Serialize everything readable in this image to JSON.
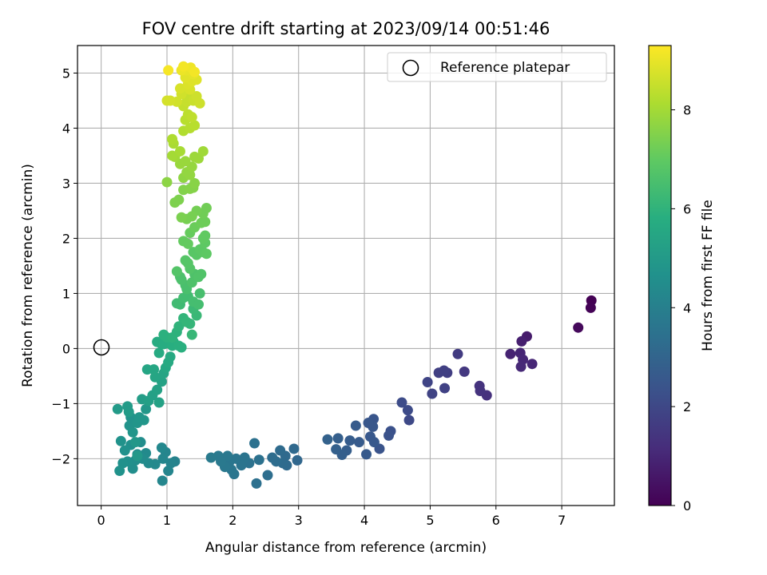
{
  "chart_data": {
    "type": "scatter",
    "title": "FOV centre drift starting at 2023/09/14 00:51:46",
    "xlabel": "Angular distance from reference (arcmin)",
    "ylabel": "Rotation from reference (arcmin)",
    "xlim": [
      -0.36,
      7.8
    ],
    "ylim": [
      -2.85,
      5.5
    ],
    "xticks": [
      0,
      1,
      2,
      3,
      4,
      5,
      6,
      7
    ],
    "yticks": [
      -2,
      -1,
      0,
      1,
      2,
      3,
      4,
      5
    ],
    "grid": true,
    "legend": {
      "placement": "top-right",
      "entries": [
        "Reference platepar"
      ]
    },
    "reference_point": {
      "x": 0,
      "y": 0,
      "label": "Reference platepar"
    },
    "colorbar": {
      "label": "Hours from first FF file",
      "colormap": "viridis",
      "range": [
        0,
        9.3
      ],
      "ticks": [
        0,
        2,
        4,
        6,
        8
      ]
    },
    "points": [
      {
        "x": 7.45,
        "y": 0.87,
        "t": 0.0
      },
      {
        "x": 7.44,
        "y": 0.74,
        "t": 0.05
      },
      {
        "x": 7.25,
        "y": 0.38,
        "t": 0.2
      },
      {
        "x": 6.47,
        "y": 0.22,
        "t": 0.7
      },
      {
        "x": 6.39,
        "y": 0.13,
        "t": 0.8
      },
      {
        "x": 6.22,
        "y": -0.1,
        "t": 0.9
      },
      {
        "x": 6.37,
        "y": -0.08,
        "t": 0.95
      },
      {
        "x": 6.41,
        "y": -0.2,
        "t": 1.0
      },
      {
        "x": 6.55,
        "y": -0.28,
        "t": 1.0
      },
      {
        "x": 6.38,
        "y": -0.33,
        "t": 1.05
      },
      {
        "x": 5.86,
        "y": -0.85,
        "t": 1.3
      },
      {
        "x": 5.75,
        "y": -0.68,
        "t": 1.35
      },
      {
        "x": 5.76,
        "y": -0.77,
        "t": 1.35
      },
      {
        "x": 5.52,
        "y": -0.42,
        "t": 1.5
      },
      {
        "x": 5.42,
        "y": -0.1,
        "t": 1.6
      },
      {
        "x": 5.26,
        "y": -0.44,
        "t": 1.7
      },
      {
        "x": 5.13,
        "y": -0.44,
        "t": 1.75
      },
      {
        "x": 5.21,
        "y": -0.4,
        "t": 1.75
      },
      {
        "x": 5.22,
        "y": -0.72,
        "t": 1.8
      },
      {
        "x": 5.03,
        "y": -0.82,
        "t": 1.85
      },
      {
        "x": 4.96,
        "y": -0.61,
        "t": 1.9
      },
      {
        "x": 4.68,
        "y": -1.3,
        "t": 2.05
      },
      {
        "x": 4.66,
        "y": -1.12,
        "t": 2.1
      },
      {
        "x": 4.57,
        "y": -0.98,
        "t": 2.15
      },
      {
        "x": 4.4,
        "y": -1.5,
        "t": 2.3
      },
      {
        "x": 4.37,
        "y": -1.58,
        "t": 2.35
      },
      {
        "x": 4.23,
        "y": -1.82,
        "t": 2.4
      },
      {
        "x": 4.14,
        "y": -1.28,
        "t": 2.45
      },
      {
        "x": 4.13,
        "y": -1.42,
        "t": 2.5
      },
      {
        "x": 4.06,
        "y": -1.35,
        "t": 2.5
      },
      {
        "x": 4.09,
        "y": -1.6,
        "t": 2.55
      },
      {
        "x": 4.15,
        "y": -1.7,
        "t": 2.55
      },
      {
        "x": 4.03,
        "y": -1.92,
        "t": 2.6
      },
      {
        "x": 3.87,
        "y": -1.4,
        "t": 2.65
      },
      {
        "x": 3.92,
        "y": -1.7,
        "t": 2.65
      },
      {
        "x": 3.78,
        "y": -1.67,
        "t": 2.7
      },
      {
        "x": 3.73,
        "y": -1.85,
        "t": 2.75
      },
      {
        "x": 3.66,
        "y": -1.93,
        "t": 2.8
      },
      {
        "x": 3.6,
        "y": -1.63,
        "t": 2.8
      },
      {
        "x": 3.57,
        "y": -1.83,
        "t": 2.85
      },
      {
        "x": 3.44,
        "y": -1.65,
        "t": 2.9
      },
      {
        "x": 2.98,
        "y": -2.03,
        "t": 3.1
      },
      {
        "x": 2.93,
        "y": -1.82,
        "t": 3.15
      },
      {
        "x": 2.82,
        "y": -2.12,
        "t": 3.2
      },
      {
        "x": 2.8,
        "y": -1.95,
        "t": 3.2
      },
      {
        "x": 2.76,
        "y": -2.08,
        "t": 3.25
      },
      {
        "x": 2.72,
        "y": -1.85,
        "t": 3.25
      },
      {
        "x": 2.66,
        "y": -2.05,
        "t": 3.3
      },
      {
        "x": 2.6,
        "y": -1.98,
        "t": 3.3
      },
      {
        "x": 2.53,
        "y": -2.3,
        "t": 3.35
      },
      {
        "x": 2.36,
        "y": -2.45,
        "t": 3.4
      },
      {
        "x": 2.4,
        "y": -2.02,
        "t": 3.45
      },
      {
        "x": 2.33,
        "y": -1.72,
        "t": 3.45
      },
      {
        "x": 2.25,
        "y": -2.08,
        "t": 3.5
      },
      {
        "x": 2.18,
        "y": -1.98,
        "t": 3.55
      },
      {
        "x": 2.13,
        "y": -2.12,
        "t": 3.55
      },
      {
        "x": 2.05,
        "y": -2.0,
        "t": 3.6
      },
      {
        "x": 2.02,
        "y": -2.28,
        "t": 3.6
      },
      {
        "x": 1.98,
        "y": -2.2,
        "t": 3.65
      },
      {
        "x": 1.95,
        "y": -2.05,
        "t": 3.65
      },
      {
        "x": 1.92,
        "y": -1.95,
        "t": 3.7
      },
      {
        "x": 1.88,
        "y": -2.15,
        "t": 3.7
      },
      {
        "x": 1.82,
        "y": -2.05,
        "t": 3.75
      },
      {
        "x": 1.78,
        "y": -1.95,
        "t": 3.75
      },
      {
        "x": 1.67,
        "y": -1.98,
        "t": 3.8
      },
      {
        "x": 1.12,
        "y": -2.05,
        "t": 4.1
      },
      {
        "x": 1.06,
        "y": -2.08,
        "t": 4.15
      },
      {
        "x": 1.02,
        "y": -2.22,
        "t": 4.2
      },
      {
        "x": 0.98,
        "y": -1.88,
        "t": 4.2
      },
      {
        "x": 0.94,
        "y": -2.0,
        "t": 4.25
      },
      {
        "x": 0.93,
        "y": -2.4,
        "t": 4.25
      },
      {
        "x": 0.92,
        "y": -1.8,
        "t": 4.3
      },
      {
        "x": 0.82,
        "y": -2.1,
        "t": 4.35
      },
      {
        "x": 0.72,
        "y": -2.08,
        "t": 4.4
      },
      {
        "x": 0.68,
        "y": -1.9,
        "t": 4.4
      },
      {
        "x": 0.63,
        "y": -2.0,
        "t": 4.45
      },
      {
        "x": 0.6,
        "y": -1.7,
        "t": 4.5
      },
      {
        "x": 0.55,
        "y": -1.92,
        "t": 4.5
      },
      {
        "x": 0.52,
        "y": -2.03,
        "t": 4.55
      },
      {
        "x": 0.48,
        "y": -2.18,
        "t": 4.55
      },
      {
        "x": 0.45,
        "y": -1.75,
        "t": 4.6
      },
      {
        "x": 0.4,
        "y": -2.05,
        "t": 4.6
      },
      {
        "x": 0.36,
        "y": -1.85,
        "t": 4.65
      },
      {
        "x": 0.33,
        "y": -2.08,
        "t": 4.65
      },
      {
        "x": 0.3,
        "y": -1.68,
        "t": 4.7
      },
      {
        "x": 0.28,
        "y": -2.22,
        "t": 4.7
      },
      {
        "x": 0.43,
        "y": -1.4,
        "t": 4.75
      },
      {
        "x": 0.45,
        "y": -1.25,
        "t": 4.75
      },
      {
        "x": 0.48,
        "y": -1.52,
        "t": 4.8
      },
      {
        "x": 0.55,
        "y": -1.35,
        "t": 4.8
      },
      {
        "x": 0.58,
        "y": -1.25,
        "t": 4.85
      },
      {
        "x": 0.65,
        "y": -1.3,
        "t": 4.85
      },
      {
        "x": 0.68,
        "y": -1.1,
        "t": 4.9
      },
      {
        "x": 0.52,
        "y": -1.7,
        "t": 4.9
      },
      {
        "x": 0.55,
        "y": -1.95,
        "t": 4.95
      },
      {
        "x": 0.25,
        "y": -1.1,
        "t": 5.0
      },
      {
        "x": 0.4,
        "y": -1.05,
        "t": 5.05
      },
      {
        "x": 0.42,
        "y": -1.15,
        "t": 5.05
      },
      {
        "x": 0.62,
        "y": -0.92,
        "t": 5.15
      },
      {
        "x": 0.72,
        "y": -0.95,
        "t": 5.2
      },
      {
        "x": 0.78,
        "y": -0.85,
        "t": 5.25
      },
      {
        "x": 0.85,
        "y": -0.75,
        "t": 5.3
      },
      {
        "x": 0.88,
        "y": -0.98,
        "t": 5.3
      },
      {
        "x": 0.92,
        "y": -0.6,
        "t": 5.35
      },
      {
        "x": 0.95,
        "y": -0.45,
        "t": 5.4
      },
      {
        "x": 0.7,
        "y": -0.38,
        "t": 5.45
      },
      {
        "x": 0.82,
        "y": -0.52,
        "t": 5.45
      },
      {
        "x": 0.8,
        "y": -0.38,
        "t": 5.5
      },
      {
        "x": 0.98,
        "y": -0.35,
        "t": 5.55
      },
      {
        "x": 1.02,
        "y": -0.25,
        "t": 5.6
      },
      {
        "x": 1.05,
        "y": -0.15,
        "t": 5.6
      },
      {
        "x": 0.88,
        "y": -0.08,
        "t": 5.65
      },
      {
        "x": 0.9,
        "y": 0.1,
        "t": 5.7
      },
      {
        "x": 0.85,
        "y": 0.12,
        "t": 5.7
      },
      {
        "x": 0.95,
        "y": 0.08,
        "t": 5.75
      },
      {
        "x": 1.0,
        "y": 0.1,
        "t": 5.75
      },
      {
        "x": 1.08,
        "y": 0.05,
        "t": 5.8
      },
      {
        "x": 1.1,
        "y": 0.12,
        "t": 5.8
      },
      {
        "x": 1.18,
        "y": 0.05,
        "t": 5.85
      },
      {
        "x": 1.22,
        "y": 0.02,
        "t": 5.85
      },
      {
        "x": 0.95,
        "y": 0.25,
        "t": 5.9
      },
      {
        "x": 1.0,
        "y": 0.2,
        "t": 5.9
      },
      {
        "x": 1.08,
        "y": 0.2,
        "t": 5.95
      },
      {
        "x": 1.15,
        "y": 0.3,
        "t": 5.95
      },
      {
        "x": 1.18,
        "y": 0.4,
        "t": 6.0
      },
      {
        "x": 1.25,
        "y": 0.55,
        "t": 6.05
      },
      {
        "x": 1.3,
        "y": 0.48,
        "t": 6.1
      },
      {
        "x": 1.35,
        "y": 0.45,
        "t": 6.1
      },
      {
        "x": 1.38,
        "y": 0.25,
        "t": 6.15
      },
      {
        "x": 1.45,
        "y": 0.6,
        "t": 6.2
      },
      {
        "x": 1.4,
        "y": 0.72,
        "t": 6.25
      },
      {
        "x": 1.2,
        "y": 0.8,
        "t": 6.3
      },
      {
        "x": 1.15,
        "y": 0.82,
        "t": 6.35
      },
      {
        "x": 1.25,
        "y": 0.92,
        "t": 6.4
      },
      {
        "x": 1.32,
        "y": 0.95,
        "t": 6.4
      },
      {
        "x": 1.4,
        "y": 0.85,
        "t": 6.45
      },
      {
        "x": 1.48,
        "y": 0.8,
        "t": 6.45
      },
      {
        "x": 1.5,
        "y": 1.0,
        "t": 6.5
      },
      {
        "x": 1.3,
        "y": 1.08,
        "t": 6.55
      },
      {
        "x": 1.28,
        "y": 1.15,
        "t": 6.55
      },
      {
        "x": 1.22,
        "y": 1.25,
        "t": 6.6
      },
      {
        "x": 1.2,
        "y": 1.3,
        "t": 6.6
      },
      {
        "x": 1.38,
        "y": 1.2,
        "t": 6.65
      },
      {
        "x": 1.42,
        "y": 1.35,
        "t": 6.65
      },
      {
        "x": 1.48,
        "y": 1.3,
        "t": 6.7
      },
      {
        "x": 1.52,
        "y": 1.35,
        "t": 6.7
      },
      {
        "x": 1.15,
        "y": 1.4,
        "t": 6.75
      },
      {
        "x": 1.35,
        "y": 1.45,
        "t": 6.75
      },
      {
        "x": 1.32,
        "y": 1.55,
        "t": 6.8
      },
      {
        "x": 1.28,
        "y": 1.6,
        "t": 6.8
      },
      {
        "x": 1.4,
        "y": 1.75,
        "t": 6.85
      },
      {
        "x": 1.45,
        "y": 1.7,
        "t": 6.85
      },
      {
        "x": 1.5,
        "y": 1.8,
        "t": 6.9
      },
      {
        "x": 1.55,
        "y": 1.75,
        "t": 6.9
      },
      {
        "x": 1.6,
        "y": 1.72,
        "t": 6.95
      },
      {
        "x": 1.58,
        "y": 1.92,
        "t": 6.95
      },
      {
        "x": 1.55,
        "y": 2.0,
        "t": 7.0
      },
      {
        "x": 1.58,
        "y": 2.05,
        "t": 7.0
      },
      {
        "x": 1.25,
        "y": 1.95,
        "t": 7.05
      },
      {
        "x": 1.32,
        "y": 1.9,
        "t": 7.05
      },
      {
        "x": 1.35,
        "y": 2.1,
        "t": 7.1
      },
      {
        "x": 1.42,
        "y": 2.2,
        "t": 7.15
      },
      {
        "x": 1.52,
        "y": 2.28,
        "t": 7.2
      },
      {
        "x": 1.58,
        "y": 2.3,
        "t": 7.2
      },
      {
        "x": 1.55,
        "y": 2.45,
        "t": 7.25
      },
      {
        "x": 1.6,
        "y": 2.55,
        "t": 7.25
      },
      {
        "x": 1.45,
        "y": 2.5,
        "t": 7.3
      },
      {
        "x": 1.38,
        "y": 2.4,
        "t": 7.35
      },
      {
        "x": 1.3,
        "y": 2.35,
        "t": 7.35
      },
      {
        "x": 1.22,
        "y": 2.38,
        "t": 7.4
      },
      {
        "x": 1.18,
        "y": 2.7,
        "t": 7.45
      },
      {
        "x": 1.12,
        "y": 2.65,
        "t": 7.45
      },
      {
        "x": 1.25,
        "y": 2.88,
        "t": 7.5
      },
      {
        "x": 1.35,
        "y": 2.9,
        "t": 7.55
      },
      {
        "x": 1.4,
        "y": 2.92,
        "t": 7.55
      },
      {
        "x": 1.42,
        "y": 3.0,
        "t": 7.6
      },
      {
        "x": 1.0,
        "y": 3.02,
        "t": 7.65
      },
      {
        "x": 1.25,
        "y": 3.1,
        "t": 7.7
      },
      {
        "x": 1.3,
        "y": 3.2,
        "t": 7.75
      },
      {
        "x": 1.35,
        "y": 3.15,
        "t": 7.75
      },
      {
        "x": 1.38,
        "y": 3.3,
        "t": 7.8
      },
      {
        "x": 1.2,
        "y": 3.35,
        "t": 7.85
      },
      {
        "x": 1.28,
        "y": 3.4,
        "t": 7.85
      },
      {
        "x": 1.42,
        "y": 3.48,
        "t": 7.9
      },
      {
        "x": 1.48,
        "y": 3.45,
        "t": 7.9
      },
      {
        "x": 1.55,
        "y": 3.58,
        "t": 7.95
      },
      {
        "x": 1.12,
        "y": 3.48,
        "t": 7.95
      },
      {
        "x": 1.08,
        "y": 3.5,
        "t": 8.0
      },
      {
        "x": 1.2,
        "y": 3.58,
        "t": 8.05
      },
      {
        "x": 1.1,
        "y": 3.72,
        "t": 8.1
      },
      {
        "x": 1.08,
        "y": 3.8,
        "t": 8.15
      },
      {
        "x": 1.25,
        "y": 3.95,
        "t": 8.2
      },
      {
        "x": 1.35,
        "y": 4.0,
        "t": 8.25
      },
      {
        "x": 1.42,
        "y": 4.05,
        "t": 8.3
      },
      {
        "x": 1.28,
        "y": 4.15,
        "t": 8.3
      },
      {
        "x": 1.32,
        "y": 4.25,
        "t": 8.35
      },
      {
        "x": 1.38,
        "y": 4.2,
        "t": 8.4
      },
      {
        "x": 1.25,
        "y": 4.4,
        "t": 8.45
      },
      {
        "x": 1.3,
        "y": 4.48,
        "t": 8.5
      },
      {
        "x": 1.32,
        "y": 4.55,
        "t": 8.5
      },
      {
        "x": 1.4,
        "y": 4.5,
        "t": 8.55
      },
      {
        "x": 1.5,
        "y": 4.45,
        "t": 8.6
      },
      {
        "x": 1.45,
        "y": 4.58,
        "t": 8.6
      },
      {
        "x": 1.22,
        "y": 4.62,
        "t": 8.65
      },
      {
        "x": 1.15,
        "y": 4.48,
        "t": 8.65
      },
      {
        "x": 1.05,
        "y": 4.5,
        "t": 8.7
      },
      {
        "x": 1.0,
        "y": 4.5,
        "t": 8.7
      },
      {
        "x": 1.2,
        "y": 4.72,
        "t": 8.75
      },
      {
        "x": 1.35,
        "y": 4.7,
        "t": 8.75
      },
      {
        "x": 1.32,
        "y": 4.8,
        "t": 8.8
      },
      {
        "x": 1.38,
        "y": 4.85,
        "t": 8.85
      },
      {
        "x": 1.45,
        "y": 4.88,
        "t": 8.85
      },
      {
        "x": 1.28,
        "y": 4.92,
        "t": 8.9
      },
      {
        "x": 1.4,
        "y": 4.98,
        "t": 8.95
      },
      {
        "x": 1.3,
        "y": 5.05,
        "t": 9.0
      },
      {
        "x": 1.22,
        "y": 5.05,
        "t": 9.05
      },
      {
        "x": 1.36,
        "y": 5.1,
        "t": 9.1
      },
      {
        "x": 1.25,
        "y": 5.12,
        "t": 9.15
      },
      {
        "x": 1.42,
        "y": 5.02,
        "t": 9.15
      },
      {
        "x": 1.02,
        "y": 5.05,
        "t": 9.2
      }
    ]
  }
}
